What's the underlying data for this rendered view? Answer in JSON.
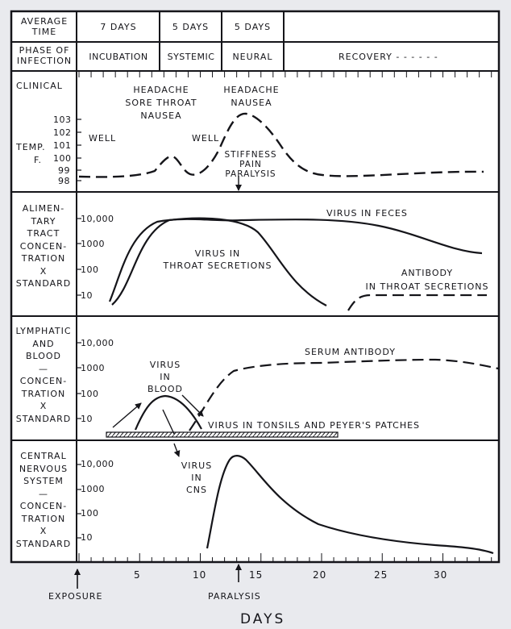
{
  "header": {
    "row1_label": [
      "AVERAGE",
      "TIME"
    ],
    "durations": [
      "7 DAYS",
      "5 DAYS",
      "5 DAYS"
    ],
    "row2_label": [
      "PHASE OF",
      "INFECTION"
    ],
    "phases": [
      "INCUBATION",
      "SYSTEMIC",
      "NEURAL"
    ],
    "recovery": "RECOVERY - - - - - -"
  },
  "clinical": {
    "label": "CLINICAL",
    "temp_label": [
      "TEMP.",
      "F."
    ],
    "temp_ticks": [
      "103",
      "102",
      "101",
      "100",
      "99",
      "98"
    ],
    "well_1": "WELL",
    "well_2": "WELL",
    "symptoms_1": [
      "HEADACHE",
      "SORE THROAT",
      "NAUSEA"
    ],
    "symptoms_2": [
      "HEADACHE",
      "NAUSEA"
    ],
    "symptoms_3": [
      "STIFFNESS",
      "PAIN",
      "PARALYSIS"
    ]
  },
  "alimentary": {
    "label": [
      "ALIMEN-",
      "TARY",
      "TRACT",
      "",
      "CONCEN-",
      "TRATION",
      "X",
      "STANDARD"
    ],
    "ticks": [
      "10,000",
      "1000",
      "100",
      "10"
    ],
    "virus_feces": "VIRUS IN FECES",
    "virus_throat": [
      "VIRUS IN",
      "THROAT SECRETIONS"
    ],
    "antibody": [
      "ANTIBODY",
      "IN THROAT SECRETIONS"
    ]
  },
  "lymphatic": {
    "label": [
      "LYMPHATIC",
      "AND",
      "BLOOD",
      "—",
      "CONCEN-",
      "TRATION",
      "X",
      "STANDARD"
    ],
    "ticks": [
      "10,000",
      "1000",
      "100",
      "10"
    ],
    "serum": "SERUM ANTIBODY",
    "virus_blood": [
      "VIRUS",
      "IN",
      "BLOOD"
    ],
    "tonsils": "VIRUS IN TONSILS AND PEYER'S PATCHES"
  },
  "cns": {
    "label": [
      "CENTRAL",
      "NERVOUS",
      "SYSTEM",
      "—",
      "CONCEN-",
      "TRATION",
      "X",
      "STANDARD"
    ],
    "ticks": [
      "10,000",
      "1000",
      "100",
      "10"
    ],
    "virus_cns": [
      "VIRUS",
      "IN",
      "CNS"
    ]
  },
  "xaxis": {
    "ticks": [
      "5",
      "10",
      "15",
      "20",
      "25",
      "30"
    ],
    "exposure": "EXPOSURE",
    "paralysis": "PARALYSIS",
    "title": "DAYS"
  },
  "colors": {
    "ink": "#15151a",
    "paper": "#ffffff",
    "background": "#e9eaee"
  }
}
